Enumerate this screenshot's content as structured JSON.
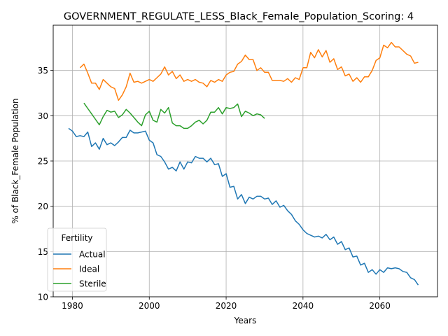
{
  "chart_data": {
    "type": "line",
    "title": "GOVERNMENT_REGULATE_LESS_Black_Female_Population_Scoring: 4",
    "xlabel": "Years",
    "ylabel": "% of Black_Female Population",
    "xlim": [
      1975,
      2075
    ],
    "ylim": [
      10,
      40
    ],
    "xticks": [
      1980,
      2000,
      2020,
      2040,
      2060
    ],
    "yticks": [
      10,
      15,
      20,
      25,
      30,
      35
    ],
    "grid": true,
    "legend": {
      "title": "Fertility",
      "placement": "lower-left"
    },
    "series": [
      {
        "name": "Actual",
        "color": "#1f77b4",
        "x": [
          1979,
          1980,
          1981,
          1982,
          1983,
          1984,
          1985,
          1986,
          1987,
          1988,
          1989,
          1990,
          1991,
          1992,
          1993,
          1994,
          1995,
          1996,
          1997,
          1998,
          1999,
          2000,
          2001,
          2002,
          2003,
          2004,
          2005,
          2006,
          2007,
          2008,
          2009,
          2010,
          2011,
          2012,
          2013,
          2014,
          2015,
          2016,
          2017,
          2018,
          2019,
          2020,
          2021,
          2022,
          2023,
          2024,
          2025,
          2026,
          2027,
          2028,
          2029,
          2030,
          2031,
          2032,
          2033,
          2034,
          2035,
          2036,
          2037,
          2038,
          2039,
          2040,
          2041,
          2042,
          2043,
          2044,
          2045,
          2046,
          2047,
          2048,
          2049,
          2050,
          2051,
          2052,
          2053,
          2054,
          2055,
          2056,
          2057,
          2058,
          2059,
          2060,
          2061,
          2062,
          2063,
          2064,
          2065,
          2066,
          2067,
          2068,
          2069,
          2070
        ],
        "values": [
          28.6,
          28.3,
          27.7,
          27.8,
          27.7,
          28.2,
          26.6,
          27.0,
          26.3,
          27.5,
          26.8,
          27.0,
          26.7,
          27.1,
          27.6,
          27.6,
          28.4,
          28.1,
          28.1,
          28.2,
          28.3,
          27.3,
          27.0,
          25.7,
          25.5,
          24.9,
          24.1,
          24.3,
          23.9,
          24.9,
          24.1,
          24.9,
          24.8,
          25.5,
          25.3,
          25.3,
          24.9,
          25.3,
          24.6,
          24.7,
          23.3,
          23.6,
          22.1,
          22.2,
          20.8,
          21.3,
          20.3,
          21.0,
          20.8,
          21.1,
          21.1,
          20.8,
          20.9,
          20.2,
          20.6,
          19.9,
          20.1,
          19.5,
          19.1,
          18.4,
          18.0,
          17.4,
          17.0,
          16.8,
          16.6,
          16.7,
          16.5,
          16.9,
          16.3,
          16.6,
          15.8,
          16.1,
          15.2,
          15.4,
          14.4,
          14.5,
          13.5,
          13.7,
          12.7,
          13.0,
          12.5,
          13.0,
          12.7,
          13.2,
          13.1,
          13.2,
          13.1,
          12.8,
          12.7,
          12.1,
          11.9,
          11.3
        ]
      },
      {
        "name": "Ideal",
        "color": "#ff7f0e",
        "x": [
          1982,
          1983,
          1984,
          1985,
          1986,
          1987,
          1988,
          1989,
          1990,
          1991,
          1992,
          1993,
          1994,
          1995,
          1996,
          1997,
          1998,
          1999,
          2000,
          2001,
          2002,
          2003,
          2004,
          2005,
          2006,
          2007,
          2008,
          2009,
          2010,
          2011,
          2012,
          2013,
          2014,
          2015,
          2016,
          2017,
          2018,
          2019,
          2020,
          2021,
          2022,
          2023,
          2024,
          2025,
          2026,
          2027,
          2028,
          2029,
          2030,
          2031,
          2032,
          2033,
          2034,
          2035,
          2036,
          2037,
          2038,
          2039,
          2040,
          2041,
          2042,
          2043,
          2044,
          2045,
          2046,
          2047,
          2048,
          2049,
          2050,
          2051,
          2052,
          2053,
          2054,
          2055,
          2056,
          2057,
          2058,
          2059,
          2060,
          2061,
          2062,
          2063,
          2064,
          2065,
          2066,
          2067,
          2068,
          2069,
          2070
        ],
        "values": [
          35.3,
          35.7,
          34.7,
          33.6,
          33.6,
          32.9,
          34.0,
          33.6,
          33.2,
          33.0,
          31.7,
          32.3,
          33.2,
          34.7,
          33.7,
          33.8,
          33.6,
          33.8,
          34.0,
          33.8,
          34.2,
          34.6,
          35.4,
          34.5,
          34.9,
          34.1,
          34.5,
          33.8,
          34.0,
          33.8,
          34.0,
          33.7,
          33.6,
          33.2,
          33.9,
          33.7,
          34.0,
          33.8,
          34.5,
          34.8,
          34.9,
          35.7,
          36.0,
          36.7,
          36.2,
          36.2,
          35.0,
          35.3,
          34.8,
          34.8,
          33.9,
          33.9,
          33.9,
          33.8,
          34.1,
          33.7,
          34.2,
          34.0,
          35.3,
          35.3,
          37.0,
          36.4,
          37.3,
          36.5,
          37.2,
          35.9,
          36.3,
          35.1,
          35.4,
          34.4,
          34.6,
          33.8,
          34.2,
          33.7,
          34.3,
          34.3,
          35.0,
          36.1,
          36.4,
          37.8,
          37.5,
          38.1,
          37.6,
          37.6,
          37.2,
          36.8,
          36.6,
          35.8,
          35.9
        ]
      },
      {
        "name": "Sterile",
        "color": "#2ca02c",
        "x": [
          1983,
          1984,
          1985,
          1986,
          1987,
          1988,
          1989,
          1990,
          1991,
          1992,
          1993,
          1994,
          1995,
          1996,
          1997,
          1998,
          1999,
          2000,
          2001,
          2002,
          2003,
          2004,
          2005,
          2006,
          2007,
          2008,
          2009,
          2010,
          2011,
          2012,
          2013,
          2014,
          2015,
          2016,
          2017,
          2018,
          2019,
          2020,
          2021,
          2022,
          2023,
          2024,
          2025,
          2026,
          2027,
          2028,
          2029,
          2030
        ],
        "values": [
          31.4,
          30.8,
          30.2,
          29.6,
          29.0,
          29.9,
          30.6,
          30.4,
          30.5,
          29.8,
          30.1,
          30.7,
          30.3,
          29.8,
          29.3,
          28.9,
          30.1,
          30.5,
          29.5,
          29.3,
          30.7,
          30.3,
          30.9,
          29.2,
          28.9,
          28.9,
          28.6,
          28.6,
          28.9,
          29.3,
          29.5,
          29.1,
          29.5,
          30.4,
          30.4,
          30.9,
          30.2,
          30.9,
          30.8,
          30.9,
          31.3,
          29.9,
          30.5,
          30.3,
          30.0,
          30.2,
          30.1,
          29.7
        ]
      }
    ]
  }
}
